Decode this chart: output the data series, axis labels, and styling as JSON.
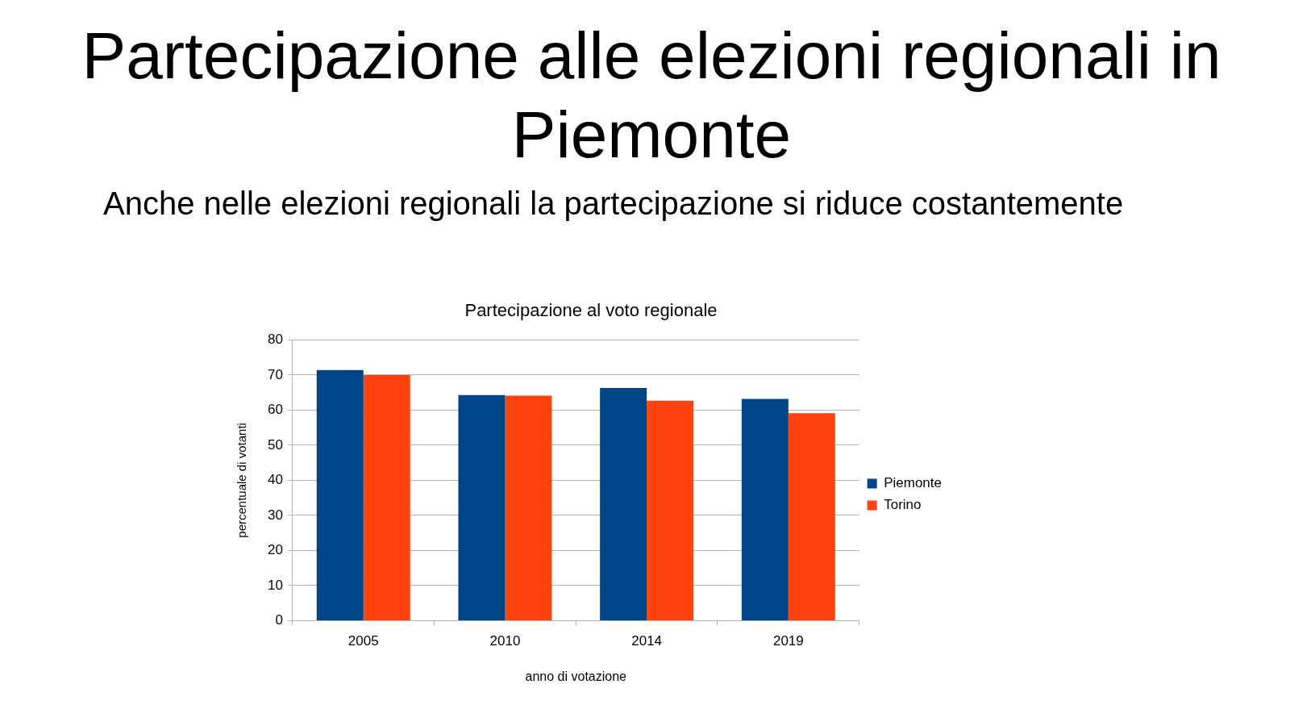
{
  "chart_data": {
    "type": "bar",
    "title": "Partecipazione alle elezioni regionali in Piemonte",
    "subtitle": "Anche nelle elezioni regionali la partecipazione si riduce costantemente",
    "annotations": [
      "Partecipazione al voto regionale"
    ],
    "xlabel": "anno di votazione",
    "ylabel": "percentuale di votanti",
    "categories": [
      "2005",
      "2010",
      "2014",
      "2019"
    ],
    "series": [
      {
        "name": "Piemonte",
        "color": "#004586",
        "values": [
          71.4,
          64.3,
          66.3,
          63.2
        ]
      },
      {
        "name": "Torino",
        "color": "#ff420e",
        "values": [
          70.0,
          64.1,
          62.7,
          59.1
        ]
      }
    ],
    "ylim": [
      0,
      80
    ],
    "yticks": [
      0,
      10,
      20,
      30,
      40,
      50,
      60,
      70,
      80
    ],
    "grid": "y",
    "legend": "right"
  }
}
